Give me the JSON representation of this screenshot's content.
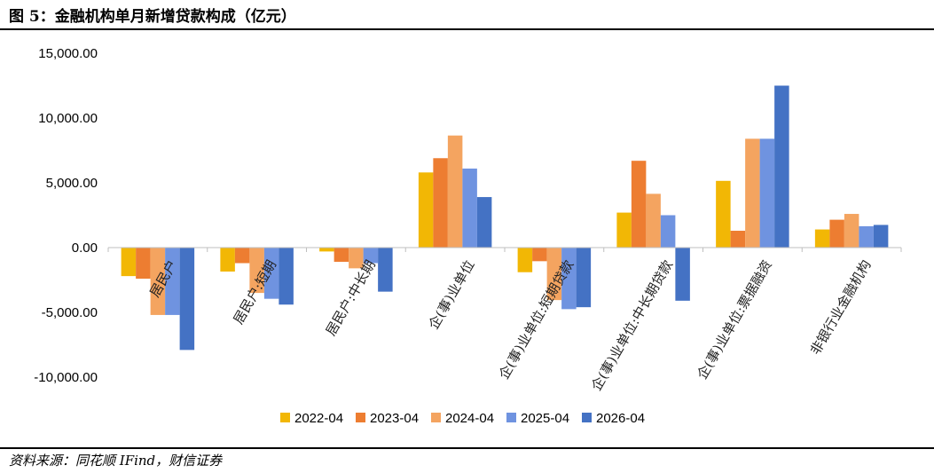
{
  "header": {
    "title": "图 5：金融机构单月新增贷款构成（亿元）"
  },
  "footer": {
    "source": "资料来源：同花顺 IFind，财信证券"
  },
  "chart_data": {
    "type": "bar",
    "title": "图 5：金融机构单月新增贷款构成（亿元）",
    "ylim": [
      -10000,
      15000
    ],
    "yticks": [
      15000,
      10000,
      5000,
      0,
      -5000,
      -10000
    ],
    "ytick_labels": [
      "15,000.00",
      "10,000.00",
      "5,000.00",
      "0.00",
      "-5,000.00",
      "-10,000.00"
    ],
    "grid": false,
    "legend_position": "bottom",
    "categories": [
      "居民户",
      "居民户:短期",
      "居民户:中长期",
      "企(事)业单位",
      "企(事)业单位:短期贷款",
      "企(事)业单位:中长期贷款",
      "企(事)业单位:票据融资",
      "非银行业金融机构"
    ],
    "series": [
      {
        "name": "2022-04",
        "color": "#F2B705",
        "values": [
          -2200,
          -1850,
          -300,
          5800,
          -1900,
          2700,
          5150,
          1400
        ]
      },
      {
        "name": "2023-04",
        "color": "#ED7D31",
        "values": [
          -2400,
          -1200,
          -1100,
          6900,
          -1050,
          6700,
          1300,
          2150
        ]
      },
      {
        "name": "2024-04",
        "color": "#F4A460",
        "values": [
          -5200,
          -3500,
          -1600,
          8650,
          -4050,
          4150,
          8400,
          2600
        ]
      },
      {
        "name": "2025-04",
        "color": "#6F93E0",
        "values": [
          -5200,
          -3950,
          -1200,
          6100,
          -4750,
          2500,
          8400,
          1650
        ]
      },
      {
        "name": "2026-04",
        "color": "#4472C4",
        "values": [
          -7900,
          -4400,
          -3400,
          3900,
          -4600,
          -4100,
          12500,
          1750
        ]
      }
    ]
  }
}
